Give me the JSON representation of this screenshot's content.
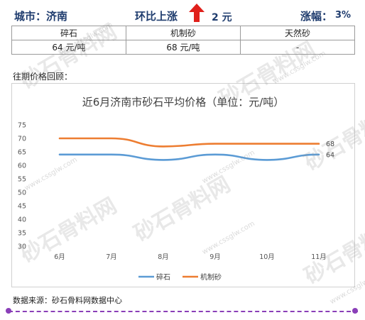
{
  "header": {
    "city": "城市：济南",
    "trend_label": "环比上涨",
    "change": "2 元",
    "range_label": "涨幅：",
    "range_value": "3%",
    "accent_color": "#1f3c6e",
    "arrow_color": "#e0201b"
  },
  "table": {
    "headers": [
      "碎石",
      "机制砂",
      "天然砂"
    ],
    "values": [
      "64 元/吨",
      "68 元/吨",
      "-"
    ]
  },
  "history_label": "往期价格回顾：",
  "chart_data": {
    "type": "line",
    "title": "近6月济南市砂石平均价格（单位：元/吨）",
    "categories": [
      "6月",
      "7月",
      "8月",
      "9月",
      "10月",
      "11月"
    ],
    "series": [
      {
        "name": "碎石",
        "values": [
          64,
          64,
          62,
          64,
          62,
          64
        ],
        "color": "#5b9bd5"
      },
      {
        "name": "机制砂",
        "values": [
          70,
          70,
          67,
          68,
          68,
          68
        ],
        "color": "#ed7d31"
      }
    ],
    "ylim": [
      30,
      75
    ],
    "yticks": [
      30,
      35,
      40,
      45,
      50,
      55,
      60,
      65,
      70,
      75
    ],
    "end_labels": [
      "64",
      "68"
    ],
    "grid": false,
    "legend": "bottom"
  },
  "source": "数据来源：砂石骨料网数据中心",
  "watermark": {
    "text": "砂石骨料网",
    "url": "www.cssglw.com"
  }
}
